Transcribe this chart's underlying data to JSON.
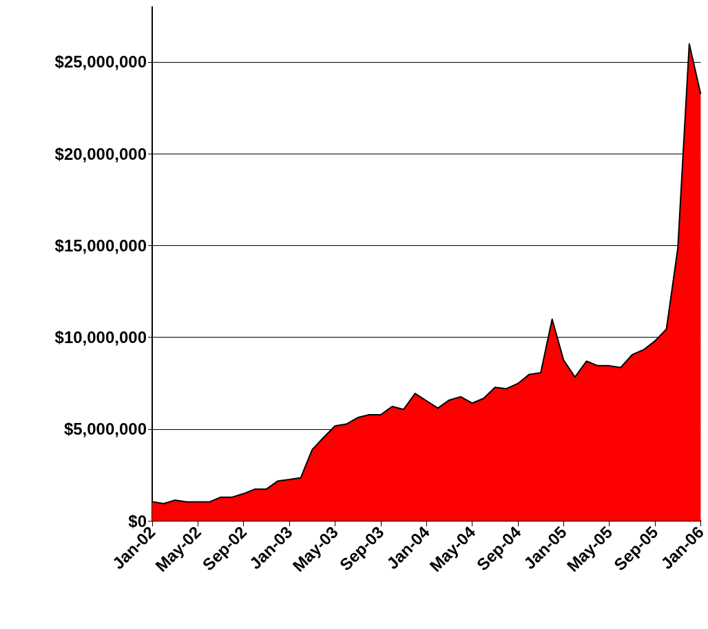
{
  "chart_data": {
    "type": "area",
    "categories": [
      "Jan-02",
      null,
      null,
      null,
      "May-02",
      null,
      null,
      null,
      "Sep-02",
      null,
      null,
      null,
      "Jan-03",
      null,
      null,
      null,
      "May-03",
      null,
      null,
      null,
      "Sep-03",
      null,
      null,
      null,
      "Jan-04",
      null,
      null,
      null,
      "May-04",
      null,
      null,
      null,
      "Sep-04",
      null,
      null,
      null,
      "Jan-05",
      null,
      null,
      null,
      "May-05",
      null,
      null,
      null,
      "Sep-05",
      null,
      null,
      null,
      "Jan-06"
    ],
    "series": [
      {
        "color": "#ff0000",
        "values": [
          1040000,
          940000,
          1130000,
          1030000,
          1030000,
          1030000,
          1290000,
          1290000,
          1480000,
          1730000,
          1730000,
          2170000,
          2250000,
          2350000,
          3880000,
          4540000,
          5170000,
          5270000,
          5630000,
          5780000,
          5780000,
          6230000,
          6070000,
          6940000,
          6540000,
          6140000,
          6580000,
          6760000,
          6410000,
          6670000,
          7270000,
          7200000,
          7480000,
          7980000,
          8070000,
          10990000,
          8760000,
          7830000,
          8700000,
          8450000,
          8450000,
          8350000,
          9050000,
          9320000,
          9800000,
          10450000,
          14860000,
          25980000,
          23250000
        ]
      }
    ],
    "ylim": [
      0,
      28000000
    ],
    "yticks": [
      {
        "value": 0,
        "label": "$0"
      },
      {
        "value": 5000000,
        "label": "$5,000,000"
      },
      {
        "value": 10000000,
        "label": "$10,000,000"
      },
      {
        "value": 15000000,
        "label": "$15,000,000"
      },
      {
        "value": 20000000,
        "label": "$20,000,000"
      },
      {
        "value": 25000000,
        "label": "$25,000,000"
      }
    ],
    "grid": "y",
    "marker": "none",
    "line_style": "solid"
  }
}
